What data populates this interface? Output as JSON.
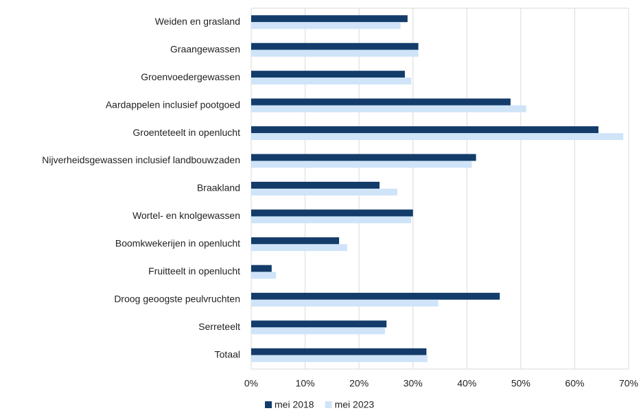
{
  "chart_data": {
    "type": "hbar",
    "categories": [
      "Weiden en grasland",
      "Graangewassen",
      "Groenvoedergewassen",
      "Aardappelen inclusief pootgoed",
      "Groenteteelt in openlucht",
      "Nijverheidsgewassen inclusief landbouwzaden",
      "Braakland",
      "Wortel- en knolgewassen",
      "Boomkwekerijen in openlucht",
      "Fruitteelt in openlucht",
      "Droog geoogste peulvruchten",
      "Serreteelt",
      "Totaal"
    ],
    "series": [
      {
        "name": "mei 2018",
        "color": "#133c6a",
        "values": [
          29.0,
          31.0,
          28.5,
          48.1,
          64.4,
          41.7,
          23.8,
          30.0,
          16.3,
          3.8,
          46.1,
          25.1,
          32.5
        ]
      },
      {
        "name": "mei 2023",
        "color": "#cfe4f8",
        "values": [
          27.7,
          31.0,
          29.7,
          51.0,
          69.0,
          40.9,
          27.1,
          29.7,
          17.8,
          4.6,
          34.7,
          24.8,
          32.7
        ]
      }
    ],
    "xlim": [
      0,
      70
    ],
    "xticks": [
      {
        "value": 0,
        "label": "0%"
      },
      {
        "value": 10,
        "label": "10%"
      },
      {
        "value": 20,
        "label": "20%"
      },
      {
        "value": 30,
        "label": "30%"
      },
      {
        "value": 40,
        "label": "40%"
      },
      {
        "value": 50,
        "label": "50%"
      },
      {
        "value": 60,
        "label": "60%"
      },
      {
        "value": 70,
        "label": "70%"
      }
    ],
    "grid": true,
    "legend": "bottom"
  }
}
